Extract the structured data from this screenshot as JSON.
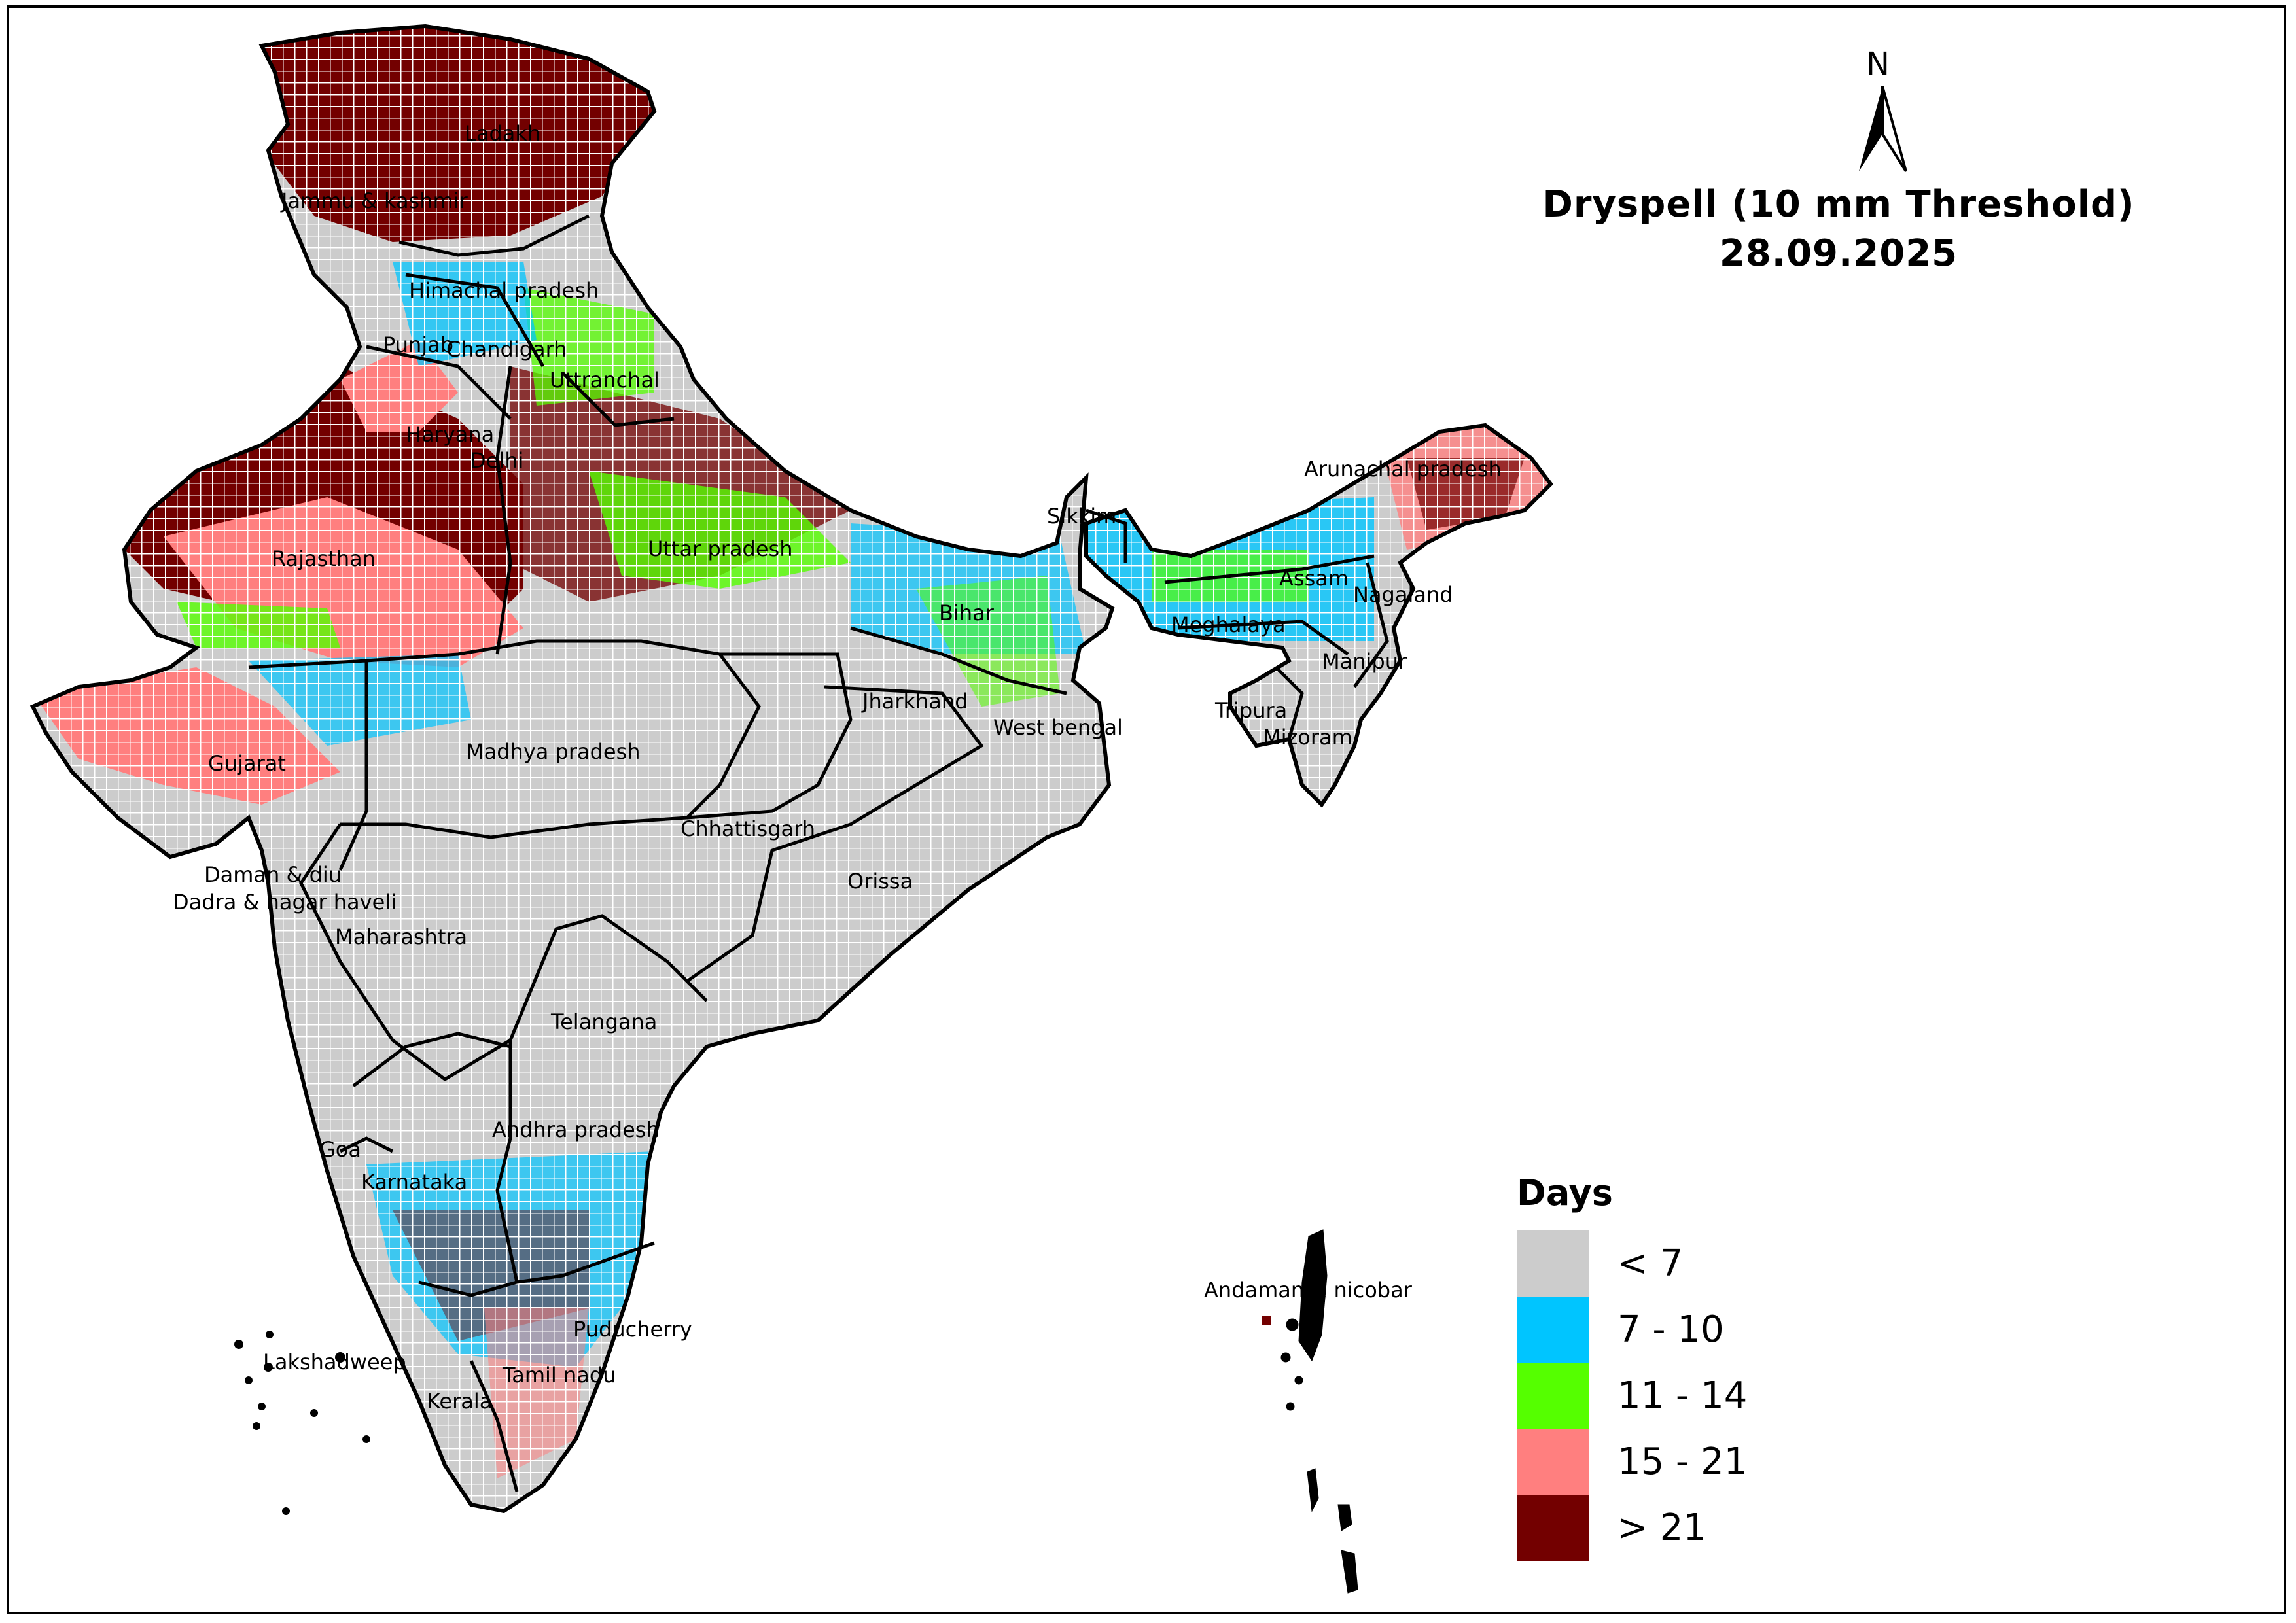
{
  "title": {
    "line1": "Dryspell (10 mm Threshold)",
    "line2": "28.09.2025"
  },
  "north_arrow": {
    "label": "N"
  },
  "legend": {
    "title": "Days",
    "items": [
      {
        "label": "< 7",
        "color": "#cccccc"
      },
      {
        "label": "7 - 10",
        "color": "#00c5ff"
      },
      {
        "label": "11 - 14",
        "color": "#55ff00"
      },
      {
        "label": "15 - 21",
        "color": "#ff7f7f"
      },
      {
        "label": "> 21",
        "color": "#730000"
      }
    ]
  },
  "states": [
    "Ladakh",
    "Jammu & kashmir",
    "Himachal pradesh",
    "Punjab",
    "Chandigarh",
    "Uttranchal",
    "Haryana",
    "Delhi",
    "Rajasthan",
    "Uttar pradesh",
    "Sikkim",
    "Arunachal pradesh",
    "Assam",
    "Nagaland",
    "Meghalaya",
    "Bihar",
    "Manipur",
    "Jharkhand",
    "West bengal",
    "Tripura",
    "Mizoram",
    "Gujarat",
    "Madhya pradesh",
    "Chhattisgarh",
    "Orissa",
    "Daman & diu",
    "Dadra & nagar haveli",
    "Maharashtra",
    "Telangana",
    "Andhra pradesh",
    "Goa",
    "Karnataka",
    "Andaman & nicobar",
    "Puducherry",
    "Lakshadweep",
    "Tamil nadu",
    "Kerala"
  ]
}
